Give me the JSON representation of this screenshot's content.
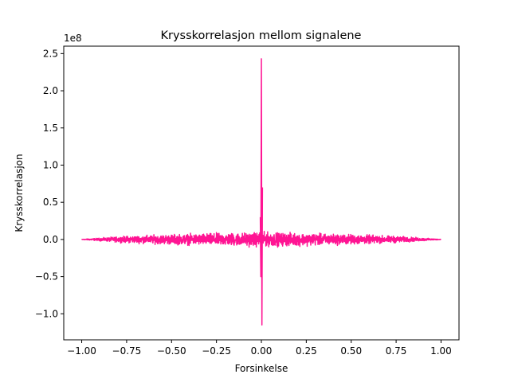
{
  "chart_data": {
    "type": "line",
    "title": "Krysskorrelasjon mellom signalene",
    "xlabel": "Forsinkelse",
    "ylabel": "Krysskorrelasjon",
    "y_offset_label": "1e8",
    "xlim": [
      -1.1,
      1.1
    ],
    "ylim": [
      -1.35,
      2.6
    ],
    "x_ticks": [
      -1.0,
      -0.75,
      -0.5,
      -0.25,
      0.0,
      0.25,
      0.5,
      0.75,
      1.0
    ],
    "x_tick_labels": [
      "−1.00",
      "−0.75",
      "−0.50",
      "−0.25",
      "0.00",
      "0.25",
      "0.50",
      "0.75",
      "1.00"
    ],
    "y_ticks": [
      -1.0,
      -0.5,
      0.0,
      0.5,
      1.0,
      1.5,
      2.0,
      2.5
    ],
    "y_tick_labels": [
      "−1.0",
      "−0.5",
      "0.0",
      "0.5",
      "1.0",
      "1.5",
      "2.0",
      "2.5"
    ],
    "grid": false,
    "legend": "none",
    "series": [
      {
        "color": "#ff1493",
        "noise_envelope": {
          "x": [
            -1.0,
            -0.75,
            -0.5,
            -0.25,
            0.0,
            0.25,
            0.5,
            0.75,
            1.0
          ],
          "half_width": [
            0.003,
            0.06,
            0.09,
            0.11,
            0.13,
            0.11,
            0.09,
            0.06,
            0.003
          ]
        },
        "central_spike": {
          "x": [
            -0.006,
            -0.003,
            0.0,
            0.003,
            0.006
          ],
          "y": [
            0.3,
            -0.5,
            2.43,
            -1.15,
            0.7
          ]
        }
      }
    ]
  }
}
